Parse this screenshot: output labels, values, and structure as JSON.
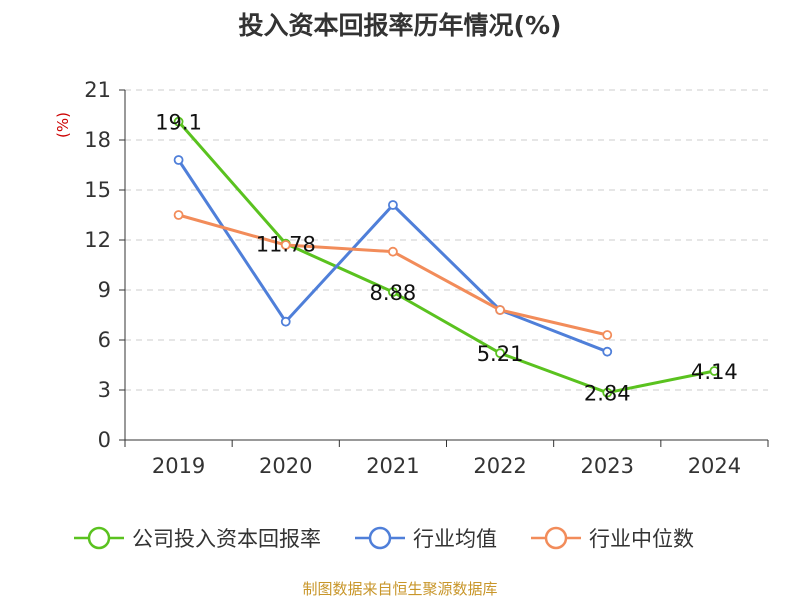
{
  "chart_data": {
    "type": "line",
    "title": "投入资本回报率历年情况(%)",
    "unit_label": "(%)",
    "categories": [
      "2019",
      "2020",
      "2021",
      "2022",
      "2023",
      "2024"
    ],
    "ylim": [
      0,
      21
    ],
    "yticks": [
      0,
      3,
      6,
      9,
      12,
      15,
      18,
      21
    ],
    "grid": true,
    "legend_position": "bottom",
    "series": [
      {
        "name": "公司投入资本回报率",
        "color": "#5ac21f",
        "values": [
          19.1,
          11.78,
          8.88,
          5.21,
          2.84,
          4.14
        ],
        "labels": [
          "19.1",
          "11.78",
          "8.88",
          "5.21",
          "2.84",
          "4.14"
        ]
      },
      {
        "name": "行业均值",
        "color": "#4f7fd9",
        "values": [
          16.8,
          7.1,
          14.1,
          7.8,
          5.3,
          null
        ]
      },
      {
        "name": "行业中位数",
        "color": "#f28c5a",
        "values": [
          13.5,
          11.7,
          11.3,
          7.8,
          6.3,
          null
        ]
      }
    ]
  },
  "source": "制图数据来自恒生聚源数据库"
}
